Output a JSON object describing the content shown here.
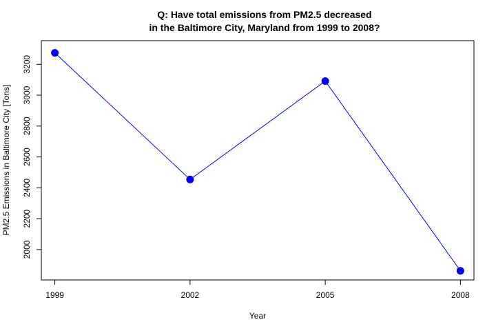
{
  "chart_data": {
    "type": "line",
    "title_lines": [
      "Q: Have total emissions from PM2.5 decreased",
      "in the Baltimore City, Maryland from 1999 to 2008?"
    ],
    "xlabel": "Year",
    "ylabel": "PM2.5 Emissions in Baltimore City [Tons]",
    "x": [
      1999,
      2002,
      2005,
      2008
    ],
    "x_tick_labels": [
      "1999",
      "2002",
      "2005",
      "2008"
    ],
    "y_ticks": [
      2000,
      2200,
      2400,
      2600,
      2800,
      3000,
      3200
    ],
    "y_tick_labels": [
      "2000",
      "2200",
      "2400",
      "2600",
      "2800",
      "3000",
      "3200"
    ],
    "xlim": [
      1998.7,
      2008.3
    ],
    "ylim": [
      1803,
      3353
    ],
    "series": [
      {
        "name": "PM2.5 Emissions",
        "values": [
          3274.2,
          2453.9,
          3091.4,
          1862.3
        ],
        "color": "#0000ff",
        "marker_color": "#0000ff"
      }
    ],
    "grid": false,
    "legend": "none"
  }
}
